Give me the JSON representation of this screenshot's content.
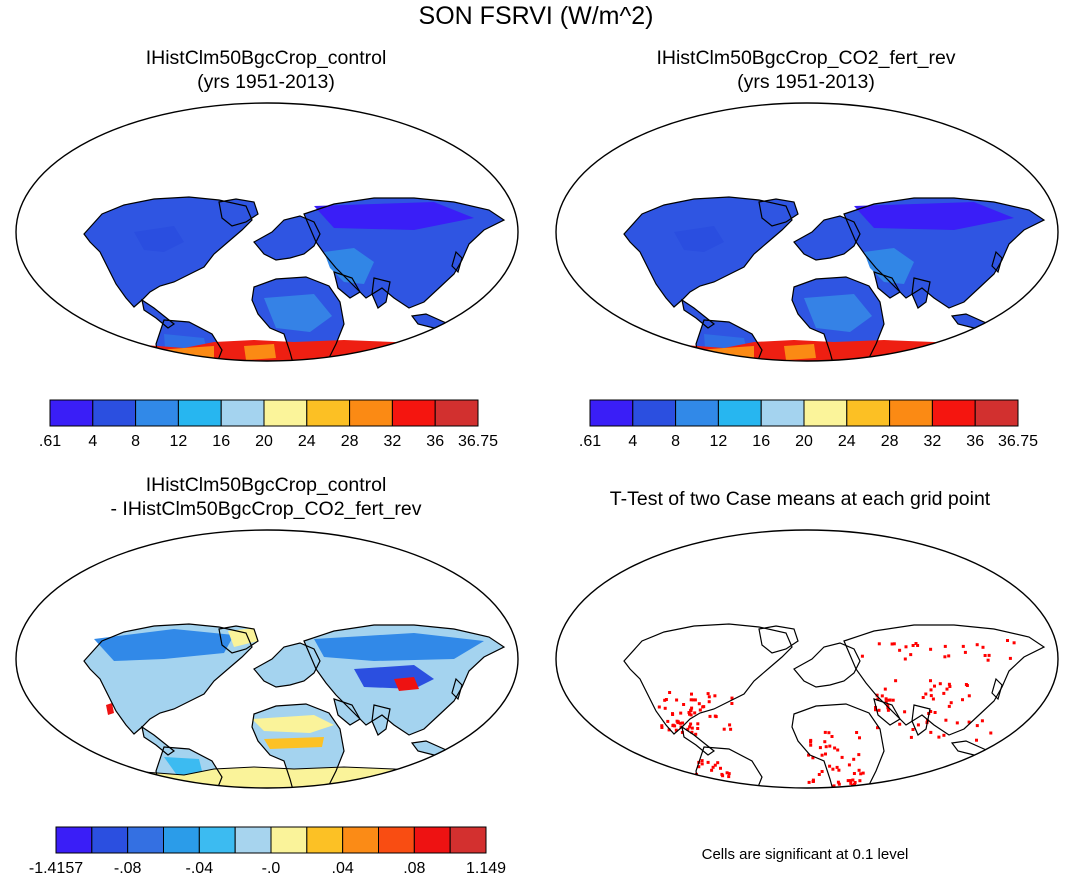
{
  "figure": {
    "title": "SON FSRVI (W/m^2)"
  },
  "panels": [
    {
      "title_line1": "IHistClm50BgcCrop_control",
      "title_line2": "(yrs 1951-2013)"
    },
    {
      "title_line1": "IHistClm50BgcCrop_CO2_fert_rev",
      "title_line2": "(yrs 1951-2013)"
    },
    {
      "title_line1": "IHistClm50BgcCrop_control",
      "title_line2": "- IHistClm50BgcCrop_CO2_fert_rev"
    },
    {
      "title_line1": "T-Test of two Case means at each grid point",
      "title_line2": ""
    }
  ],
  "colorbar_top": {
    "colors": [
      "#3a1ef7",
      "#2b4fe0",
      "#3189e8",
      "#27b6f0",
      "#a4d3ef",
      "#fbf49a",
      "#fcc024",
      "#fb8a14",
      "#f5150f",
      "#d2302f"
    ],
    "labels": [
      ".61",
      "4",
      "8",
      "12",
      "16",
      "20",
      "24",
      "28",
      "32",
      "36",
      "36.75"
    ]
  },
  "colorbar_diff": {
    "colors": [
      "#3a1ef7",
      "#2b4fe0",
      "#3470e2",
      "#2b9ce9",
      "#3cbbf1",
      "#a7d4ee",
      "#faf39a",
      "#fcc125",
      "#fb8b16",
      "#f94d12",
      "#ee1212",
      "#d3302f"
    ],
    "labels": [
      "-1.4157",
      "-.08",
      "-.04",
      "-.0",
      ".04",
      ".08",
      "1.149"
    ]
  },
  "ttest": {
    "note": "Cells are significant at 0.1 level",
    "significant_color": "#ff0000"
  }
}
